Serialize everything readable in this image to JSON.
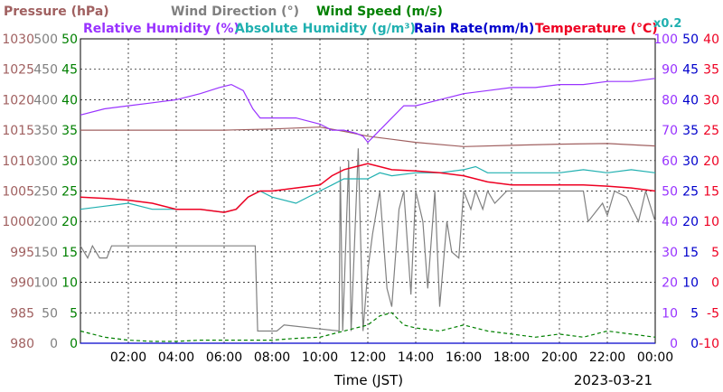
{
  "chart_data": {
    "type": "line",
    "legend": [
      {
        "text": "Pressure (hPa)",
        "color": "#a06060"
      },
      {
        "text": "Wind Direction (°)",
        "color": "#808080"
      },
      {
        "text": "Wind Speed (m/s)",
        "color": "#008000"
      },
      {
        "text": "Relative Humidity (%)",
        "color": "#9933ff"
      },
      {
        "text": "Absolute Humidity (g/m³)",
        "color": "#20b0b0"
      },
      {
        "text": "Rain Rate(mm/h)",
        "color": "#0000cc"
      },
      {
        "text": "Temperature (°C)",
        "color": "#ee0022"
      }
    ],
    "scale_note": "x0.2",
    "xlabel": "Time (JST)",
    "date": "2023-03-21",
    "x_ticks": [
      "02:00",
      "04:00",
      "06:00",
      "08:00",
      "10:00",
      "12:00",
      "14:00",
      "16:00",
      "18:00",
      "20:00",
      "22:00",
      "00:00"
    ],
    "left_axes": [
      {
        "name": "pressure",
        "color": "#a06060",
        "ticks": [
          "1030",
          "1025",
          "1020",
          "1015",
          "1010",
          "1005",
          "1000",
          "995",
          "990",
          "985",
          "980"
        ]
      },
      {
        "name": "wind_direction",
        "color": "#808080",
        "ticks": [
          "500",
          "450",
          "400",
          "350",
          "300",
          "250",
          "200",
          "150",
          "100",
          "50",
          "0"
        ]
      },
      {
        "name": "wind_speed",
        "color": "#008000",
        "ticks": [
          "50",
          "45",
          "40",
          "35",
          "30",
          "25",
          "20",
          "15",
          "10",
          "5",
          "0"
        ]
      }
    ],
    "right_axes": [
      {
        "name": "relative_humidity",
        "color": "#9933ff",
        "ticks": [
          "100",
          "90",
          "80",
          "70",
          "60",
          "50",
          "40",
          "30",
          "20",
          "10",
          "0"
        ]
      },
      {
        "name": "rain_rate",
        "color": "#0000cc",
        "ticks": [
          "50",
          "45",
          "40",
          "35",
          "30",
          "25",
          "20",
          "15",
          "10",
          "5",
          "0"
        ]
      },
      {
        "name": "temperature",
        "color": "#ee0022",
        "ticks": [
          "40",
          "35",
          "30",
          "25",
          "20",
          "15",
          "10",
          "5",
          "0",
          "-5",
          "-10"
        ]
      }
    ],
    "x_range_hours": [
      0,
      24
    ],
    "grid": true,
    "series": [
      {
        "name": "Pressure (hPa)",
        "axis": "pressure",
        "color": "#a06060",
        "ymin": 980,
        "ymax": 1030,
        "x": [
          0,
          2,
          4,
          6,
          8,
          10,
          11,
          12,
          13,
          14,
          16,
          18,
          20,
          22,
          24
        ],
        "y": [
          1015,
          1015,
          1015,
          1015,
          1015.2,
          1015.5,
          1014.8,
          1014,
          1013.5,
          1013,
          1012.3,
          1012.5,
          1012.7,
          1012.8,
          1012.4
        ]
      },
      {
        "name": "Wind Direction (°)",
        "axis": "wind_direction",
        "color": "#808080",
        "ymin": 0,
        "ymax": 500,
        "x": [
          0,
          0.3,
          0.5,
          0.8,
          1.1,
          1.3,
          7.3,
          7.4,
          8.2,
          8.5,
          10.8,
          10.85,
          10.95,
          11.2,
          11.3,
          11.6,
          11.8,
          12,
          12.2,
          12.5,
          12.8,
          13,
          13.3,
          13.5,
          13.8,
          14,
          14.3,
          14.5,
          14.8,
          15,
          15.3,
          15.5,
          15.8,
          16,
          16.3,
          16.5,
          16.8,
          17,
          17.3,
          17.8,
          21,
          21.2,
          21.8,
          22,
          22.3,
          22.8,
          23.3,
          23.6,
          24
        ],
        "y": [
          160,
          140,
          160,
          140,
          140,
          160,
          160,
          20,
          20,
          30,
          20,
          290,
          20,
          300,
          20,
          320,
          20,
          120,
          180,
          250,
          90,
          60,
          220,
          250,
          80,
          250,
          200,
          90,
          250,
          60,
          200,
          150,
          140,
          250,
          220,
          250,
          220,
          250,
          230,
          250,
          250,
          200,
          230,
          210,
          250,
          240,
          200,
          250,
          200
        ]
      },
      {
        "name": "Wind Speed (m/s)",
        "axis": "wind_speed",
        "color": "#008000",
        "ymin": 0,
        "ymax": 50,
        "x": [
          0,
          1,
          2,
          3,
          4,
          5,
          6,
          7,
          8,
          9,
          10,
          11,
          12,
          12.5,
          13,
          13.5,
          14,
          15,
          16,
          17,
          18,
          19,
          20,
          21,
          22,
          23,
          24
        ],
        "y": [
          2,
          1,
          0.5,
          0.3,
          0.3,
          0.5,
          0.5,
          0.5,
          0.5,
          0.8,
          1,
          2,
          3,
          4.5,
          5,
          3,
          2.5,
          2,
          3,
          2,
          1.5,
          1,
          1.5,
          1,
          2,
          1.5,
          1
        ]
      },
      {
        "name": "Relative Humidity (%)",
        "axis": "relative_humidity",
        "color": "#9933ff",
        "ymin": 0,
        "ymax": 100,
        "x": [
          0,
          1,
          2,
          3,
          4,
          5,
          5.8,
          6.3,
          6.8,
          7.2,
          7.5,
          8,
          9,
          10,
          10.5,
          11,
          11.5,
          11.8,
          12,
          12.5,
          13,
          13.5,
          14,
          15,
          16,
          17,
          18,
          19,
          20,
          21,
          22,
          23,
          24
        ],
        "y": [
          75,
          77,
          78,
          79,
          80,
          82,
          84,
          85,
          83,
          77,
          74,
          74,
          74,
          72,
          70,
          70,
          69,
          68,
          66,
          70,
          74,
          78,
          78,
          80,
          82,
          83,
          84,
          84,
          85,
          85,
          86,
          86,
          87
        ]
      },
      {
        "name": "Absolute Humidity (g/m³)",
        "axis": "wind_speed",
        "color": "#20b0b0",
        "ymin": 0,
        "ymax": 50,
        "x": [
          0,
          1,
          2,
          3,
          4,
          5,
          6,
          6.5,
          7,
          7.5,
          8,
          9,
          10,
          10.5,
          11,
          11.5,
          12,
          12.5,
          13,
          14,
          15,
          16,
          16.5,
          17,
          18,
          19,
          20,
          21,
          22,
          23,
          24
        ],
        "y": [
          22,
          22.5,
          23,
          22,
          22,
          22,
          21.5,
          22,
          24,
          25,
          24,
          23,
          25,
          26,
          27,
          27,
          27,
          28,
          27.5,
          28,
          28,
          28.5,
          29,
          28,
          28,
          28,
          28,
          28.5,
          28,
          28.5,
          28
        ]
      },
      {
        "name": "Rain Rate(mm/h)",
        "axis": "rain_rate",
        "color": "#0000cc",
        "ymin": 0,
        "ymax": 50,
        "x": [
          0,
          24
        ],
        "y": [
          0,
          0
        ]
      },
      {
        "name": "Temperature (°C)",
        "axis": "temperature",
        "color": "#ee0022",
        "ymin": -10,
        "ymax": 40,
        "x": [
          0,
          1,
          2,
          3,
          4,
          5,
          6,
          6.5,
          7,
          7.5,
          8,
          9,
          10,
          10.5,
          11,
          11.5,
          12,
          12.5,
          13,
          14,
          15,
          16,
          17,
          18,
          19,
          20,
          21,
          22,
          23,
          24
        ],
        "y": [
          14,
          13.8,
          13.5,
          13,
          12,
          12,
          11.5,
          12,
          14,
          15,
          15,
          15.5,
          16,
          17.5,
          18.5,
          19,
          19.5,
          19,
          18.5,
          18.3,
          18,
          17.5,
          16.5,
          16,
          16,
          16,
          16,
          15.8,
          15.5,
          15
        ]
      }
    ]
  }
}
